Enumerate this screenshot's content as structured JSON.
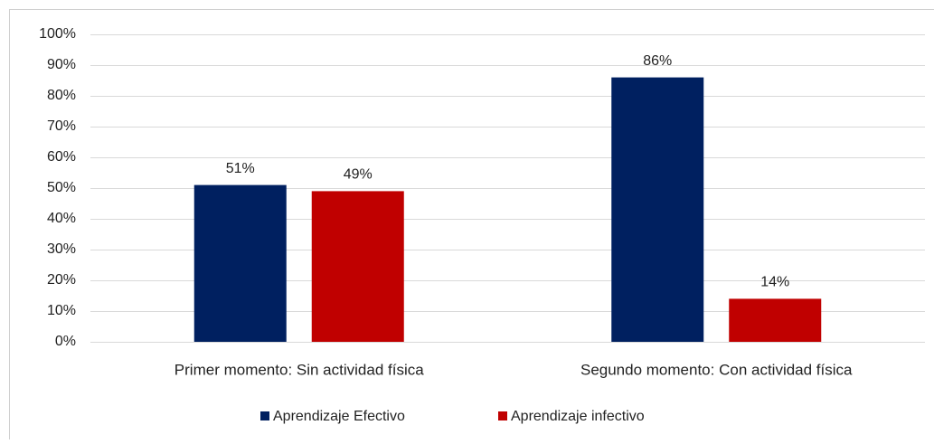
{
  "chart_data": {
    "type": "bar",
    "categories": [
      "Primer momento: Sin actividad física",
      "Segundo momento: Con actividad física"
    ],
    "series": [
      {
        "name": "Aprendizaje Efectivo",
        "color": "#002060",
        "values": [
          51,
          86
        ],
        "value_labels": [
          "51%",
          "86%"
        ]
      },
      {
        "name": "Aprendizaje infectivo",
        "color": "#c00000",
        "values": [
          49,
          14
        ],
        "value_labels": [
          "49%",
          "14%"
        ]
      }
    ],
    "ylim": [
      0,
      100
    ],
    "yticks": [
      {
        "value": 0,
        "label": "0%"
      },
      {
        "value": 10,
        "label": "10%"
      },
      {
        "value": 20,
        "label": "20%"
      },
      {
        "value": 30,
        "label": "30%"
      },
      {
        "value": 40,
        "label": "40%"
      },
      {
        "value": 50,
        "label": "50%"
      },
      {
        "value": 60,
        "label": "60%"
      },
      {
        "value": 70,
        "label": "70%"
      },
      {
        "value": 80,
        "label": "80%"
      },
      {
        "value": 90,
        "label": "90%"
      },
      {
        "value": 100,
        "label": "100%"
      }
    ],
    "grid": true,
    "legend": "bottom"
  }
}
